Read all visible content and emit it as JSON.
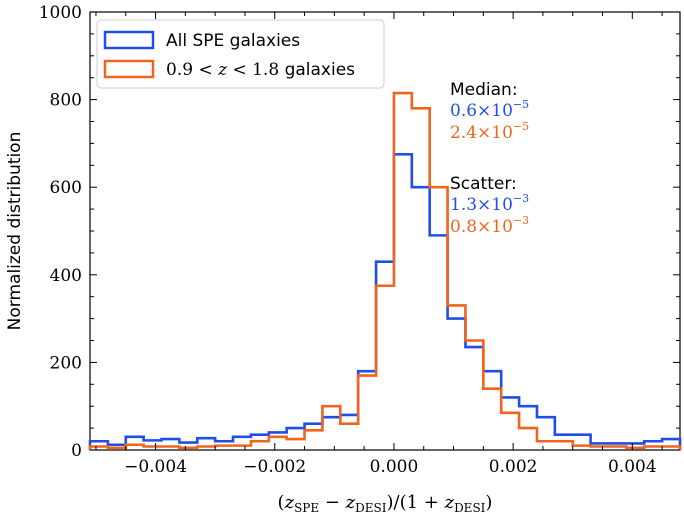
{
  "chart_data": {
    "type": "histogram",
    "title": "",
    "xlabel": "(z_SPE − z_DESI)/(1 + z_DESI)",
    "ylabel": "Normalized distribution",
    "xlim": [
      -0.0051,
      0.0048
    ],
    "ylim": [
      0,
      1000
    ],
    "xticks": [
      -0.004,
      -0.002,
      0.0,
      0.002,
      0.004
    ],
    "xtick_labels": [
      "−0.004",
      "−0.002",
      "0.000",
      "0.002",
      "0.004"
    ],
    "yticks": [
      0,
      200,
      400,
      600,
      800,
      1000
    ],
    "ytick_labels": [
      "0",
      "200",
      "400",
      "600",
      "800",
      "1000"
    ],
    "grid": false,
    "legend_position": "top-left",
    "bin_edges": [
      -0.0051,
      -0.0048,
      -0.0045,
      -0.0042,
      -0.0039,
      -0.0036,
      -0.0033,
      -0.003,
      -0.0027,
      -0.0024,
      -0.0021,
      -0.0018,
      -0.0015,
      -0.0012,
      -0.0009,
      -0.0006,
      -0.0003,
      0.0,
      0.0003,
      0.0006,
      0.0009,
      0.0012,
      0.0015,
      0.0018,
      0.0021,
      0.0024,
      0.0027,
      0.003,
      0.0033,
      0.0036,
      0.0039,
      0.0042,
      0.0045,
      0.0048
    ],
    "series": [
      {
        "name": "All SPE galaxies",
        "color": "#1f4fe6",
        "values": [
          20,
          12,
          30,
          22,
          25,
          17,
          27,
          20,
          30,
          35,
          40,
          50,
          60,
          75,
          80,
          180,
          430,
          675,
          600,
          490,
          300,
          235,
          180,
          120,
          100,
          75,
          35,
          35,
          15,
          15,
          15,
          20,
          25
        ]
      },
      {
        "name": "0.9 < z < 1.8 galaxies",
        "color": "#f0641e",
        "values": [
          8,
          5,
          12,
          8,
          8,
          5,
          8,
          10,
          10,
          20,
          30,
          25,
          45,
          100,
          60,
          170,
          375,
          815,
          780,
          600,
          330,
          250,
          140,
          85,
          50,
          20,
          20,
          10,
          8,
          8,
          5,
          8,
          8
        ]
      }
    ],
    "legend": [
      {
        "label": "All SPE galaxies"
      },
      {
        "label_prefix": "0.9 <",
        "label_var": "z",
        "label_mid": "< 1.8",
        "label_suffix": "galaxies"
      }
    ],
    "annotations": {
      "median_label": "Median:",
      "median_blue": "0.6×10",
      "median_blue_exp": "−5",
      "median_orange": "2.4×10",
      "median_orange_exp": "−5",
      "scatter_label": "Scatter:",
      "scatter_blue": "1.3×10",
      "scatter_blue_exp": "−3",
      "scatter_orange": "0.8×10",
      "scatter_orange_exp": "−3"
    }
  }
}
